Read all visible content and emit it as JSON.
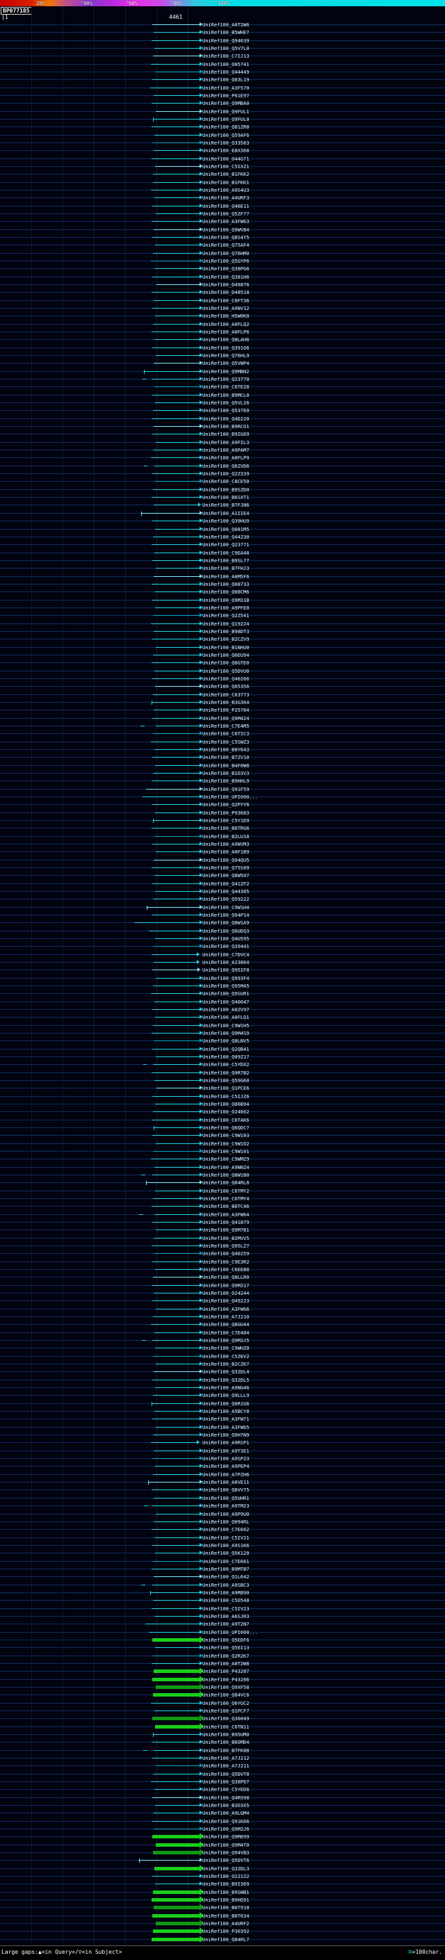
{
  "footer": {
    "left": "Large gaps:▲<in Query>/▽<in Subject>",
    "scale_symbol": "≡",
    "right": "=100char."
  },
  "chart_data": {
    "type": "bar",
    "orientation": "horizontal-alignment-spans",
    "title": "BP077185",
    "x_axis": {
      "min": 1,
      "max": 4461,
      "label_left": "|1",
      "label_right": "4461",
      "unit": "char"
    },
    "identity_scale": {
      "ticks": [
        "20%",
        "^40%",
        "^60%",
        "^80%",
        "^100%"
      ],
      "colors": [
        "#c40000",
        "#f07800",
        "#8836cc",
        "#ee2aee",
        "#00e2e8"
      ]
    },
    "label_prefix": "UniRef100_",
    "palette": {
      "cy": "#1fd8ea",
      "cb": "#7deeff",
      "cd": "#00a8c8",
      "gr": "#19cf19",
      "gd": "#0f9a12"
    },
    "rows": [
      {
        "l": "A0T2W6",
        "a": 219,
        "c": "cb"
      },
      {
        "l": "B5WHE7",
        "a": 221
      },
      {
        "l": "Q94639",
        "a": 218
      },
      {
        "l": "Q5V7L0",
        "a": 222
      },
      {
        "l": "C7IJ13",
        "a": 220,
        "c": "cb"
      },
      {
        "l": "O05741",
        "a": 217
      },
      {
        "l": "Q44449",
        "a": 223,
        "c": "cd"
      },
      {
        "l": "Q83L19",
        "a": 219
      },
      {
        "l": "A3F570",
        "a": 216
      },
      {
        "l": "P61E97",
        "a": 221
      },
      {
        "l": "Q9MBA0",
        "a": 218
      },
      {
        "l": "Q9FUL1",
        "a": 224,
        "c": "cb"
      },
      {
        "l": "Q9FUL0",
        "a": 220,
        "k": 1
      },
      {
        "l": "Q81ZR8",
        "a": 218
      },
      {
        "l": "Q59AF6",
        "a": 222
      },
      {
        "l": "Q33583",
        "a": 219,
        "c": "cd"
      },
      {
        "l": "E8X368",
        "a": 221
      },
      {
        "l": "O44G71",
        "a": 218
      },
      {
        "l": "C5IXZ1",
        "a": 223,
        "c": "cb"
      },
      {
        "l": "B1FKK2",
        "a": 220
      },
      {
        "l": "B1FKK1",
        "a": 220
      },
      {
        "l": "A9S4U3",
        "a": 217
      },
      {
        "l": "A4URF3",
        "a": 222
      },
      {
        "l": "Q46E11",
        "a": 219
      },
      {
        "l": "Q5ZF77",
        "a": 224
      },
      {
        "l": "A3FW63",
        "a": 218
      },
      {
        "l": "Q9WVB4",
        "a": 221,
        "c": "cb"
      },
      {
        "l": "Q8S4Y5",
        "a": 219
      },
      {
        "l": "Q75AF4",
        "a": 223
      },
      {
        "l": "Q76HM0",
        "a": 220
      },
      {
        "l": "Q5GYP6",
        "a": 217,
        "c": "cd"
      },
      {
        "l": "Q38PG6",
        "a": 222
      },
      {
        "l": "Q381H6",
        "a": 219
      },
      {
        "l": "D49876",
        "a": 225,
        "c": "cb"
      },
      {
        "l": "D48518",
        "a": 218
      },
      {
        "l": "C0FT36",
        "a": 221
      },
      {
        "l": "A9NV12",
        "a": 219
      },
      {
        "l": "H5W0K0",
        "a": 223
      },
      {
        "l": "A0FLQ2",
        "a": 220
      },
      {
        "l": "A0FLP6",
        "a": 218
      },
      {
        "l": "Q8LAH6",
        "a": 222
      },
      {
        "l": "Q391O6",
        "a": 219
      },
      {
        "l": "Q76HL9",
        "a": 224
      },
      {
        "l": "Q5VWP4",
        "a": 221,
        "c": "cb"
      },
      {
        "l": "Q9MBN2",
        "a": 207,
        "k": 1
      },
      {
        "l": "Q23770",
        "a": 218,
        "p": [
          205,
          211
        ]
      },
      {
        "l": "C6TEZ8",
        "a": 222,
        "c": "cd"
      },
      {
        "l": "B9MCL0",
        "a": 219
      },
      {
        "l": "Q5VLI6",
        "a": 223
      },
      {
        "l": "Q537E0",
        "a": 220
      },
      {
        "l": "Q4D220",
        "a": 218
      },
      {
        "l": "B9RCO1",
        "a": 221,
        "c": "cb"
      },
      {
        "l": "B9IG69",
        "a": 219
      },
      {
        "l": "A9FIL3",
        "a": 224
      },
      {
        "l": "A9PAM7",
        "a": 220
      },
      {
        "l": "A0FLP9",
        "a": 217
      },
      {
        "l": "Q6ZVD6",
        "a": 222,
        "p": [
          207,
          212
        ]
      },
      {
        "l": "Q2Z339",
        "a": 219
      },
      {
        "l": "C8CE50",
        "a": 223,
        "c": "cd"
      },
      {
        "l": "B9SZD0",
        "a": 220
      },
      {
        "l": "B6SXT1",
        "a": 218
      },
      {
        "l": "B7FJN6",
        "a": 221,
        "b": 285
      },
      {
        "l": "A1IIE4",
        "a": 203,
        "k": 1,
        "c": "cb"
      },
      {
        "l": "Q39HU9",
        "a": 219
      },
      {
        "l": "Q081M5",
        "a": 223
      },
      {
        "l": "Q44230",
        "a": 220
      },
      {
        "l": "Q23771",
        "a": 218
      },
      {
        "l": "C9EA48",
        "a": 222
      },
      {
        "l": "B9SL77",
        "a": 219
      },
      {
        "l": "B7FHJ3",
        "a": 224
      },
      {
        "l": "A0M5F6",
        "a": 221,
        "c": "cb"
      },
      {
        "l": "Q08733",
        "a": 218
      },
      {
        "l": "Q08CM6",
        "a": 222
      },
      {
        "l": "Q9M31B",
        "a": 219
      },
      {
        "l": "A9PFE8",
        "a": 223
      },
      {
        "l": "Q2Z541",
        "a": 220,
        "c": "cd"
      },
      {
        "l": "Q19224",
        "a": 217
      },
      {
        "l": "B98DT3",
        "a": 221
      },
      {
        "l": "B2CZV9",
        "a": 219
      },
      {
        "l": "B1NHU0",
        "a": 224
      },
      {
        "l": "Q6EU94",
        "a": 220
      },
      {
        "l": "Q8GTE0",
        "a": 218
      },
      {
        "l": "Q5DVU0",
        "a": 222
      },
      {
        "l": "Q40266",
        "a": 219
      },
      {
        "l": "Q65356",
        "a": 223,
        "c": "cb"
      },
      {
        "l": "C63773",
        "a": 220
      },
      {
        "l": "B3G364",
        "a": 218,
        "k": 1
      },
      {
        "l": "P25784",
        "a": 221
      },
      {
        "l": "Q9M424",
        "a": 219
      },
      {
        "l": "C7E4M5",
        "a": 224,
        "p": [
          202,
          208
        ]
      },
      {
        "l": "C6TIC3",
        "a": 220,
        "c": "cd"
      },
      {
        "l": "C5SWZ3",
        "a": 217
      },
      {
        "l": "B8Y643",
        "a": 222
      },
      {
        "l": "B7ZV10",
        "a": 219
      },
      {
        "l": "B4F0W8",
        "a": 223
      },
      {
        "l": "B1O3V3",
        "a": 220
      },
      {
        "l": "B9HHL9",
        "a": 218
      },
      {
        "l": "Q91F59",
        "a": 210,
        "c": "cb"
      },
      {
        "l": "UPI000...",
        "a": 205
      },
      {
        "l": "Q2PYY6",
        "a": 219
      },
      {
        "l": "P93683",
        "a": 223
      },
      {
        "l": "C5Y1D9",
        "a": 220,
        "k": 1
      },
      {
        "l": "B6TRG6",
        "a": 218
      },
      {
        "l": "B2LU18",
        "a": 222,
        "c": "cd"
      },
      {
        "l": "A9NVM3",
        "a": 219
      },
      {
        "l": "A0F1B9",
        "a": 224
      },
      {
        "l": "Q94QU5",
        "a": 221,
        "c": "cb"
      },
      {
        "l": "Q75S09",
        "a": 218
      },
      {
        "l": "Q8W507",
        "a": 222
      },
      {
        "l": "Q41ZF2",
        "a": 219
      },
      {
        "l": "Q44385",
        "a": 223
      },
      {
        "l": "Q59222",
        "a": 220
      },
      {
        "l": "C9W1H4",
        "a": 211,
        "k": 1,
        "c": "cb"
      },
      {
        "l": "Q94P14",
        "a": 218
      },
      {
        "l": "Q8W1A9",
        "a": 193
      },
      {
        "l": "Q6UDQ3",
        "a": 214
      },
      {
        "l": "Q4U595",
        "a": 223
      },
      {
        "l": "Q39441",
        "a": 220,
        "c": "cd"
      },
      {
        "l": "C7DVC4",
        "a": 218,
        "b": 283
      },
      {
        "l": "A23864",
        "a": 221,
        "b": 283
      },
      {
        "l": "Q95IF8",
        "a": 219,
        "b": 284,
        "c": "cb"
      },
      {
        "l": "Q993F4",
        "a": 224
      },
      {
        "l": "Q95M45",
        "a": 220
      },
      {
        "l": "Q9SUR1",
        "a": 217
      },
      {
        "l": "Q40047",
        "a": 222
      },
      {
        "l": "A0ZV97",
        "a": 219
      },
      {
        "l": "A0FLQ1",
        "a": 223
      },
      {
        "l": "C9W1H5",
        "a": 220
      },
      {
        "l": "Q9M4S9",
        "a": 218
      },
      {
        "l": "Q8LNV5",
        "a": 221,
        "c": "cd"
      },
      {
        "l": "Q2QB41",
        "a": 219
      },
      {
        "l": "Q09Z17",
        "a": 224
      },
      {
        "l": "C5YDX2",
        "a": 220,
        "p": [
          206,
          211
        ]
      },
      {
        "l": "Q9R7B2",
        "a": 218
      },
      {
        "l": "Q59G60",
        "a": 222
      },
      {
        "l": "Q1PCE6",
        "a": 225,
        "c": "cb"
      },
      {
        "l": "C5IJZ6",
        "a": 219
      },
      {
        "l": "Q06B94",
        "a": 223
      },
      {
        "l": "O24662",
        "a": 220
      },
      {
        "l": "C6TAK6",
        "a": 218
      },
      {
        "l": "Q6QDC7",
        "a": 221,
        "k": 1
      },
      {
        "l": "C9W103",
        "a": 219
      },
      {
        "l": "C9W1O2",
        "a": 224
      },
      {
        "l": "C9W101",
        "a": 220,
        "c": "cd"
      },
      {
        "l": "C9WMZ9",
        "a": 217
      },
      {
        "l": "A9NNZ4",
        "a": 222
      },
      {
        "l": "Q8W1B0",
        "a": 219,
        "p": [
          203,
          209
        ]
      },
      {
        "l": "Q84RL8",
        "a": 210,
        "k": 1,
        "c": "cb"
      },
      {
        "l": "C6TMY2",
        "a": 223
      },
      {
        "l": "C6TMY4",
        "a": 220
      },
      {
        "l": "B6TC46",
        "a": 218
      },
      {
        "l": "A3FW64",
        "a": 222,
        "p": [
          200,
          206
        ]
      },
      {
        "l": "Q41879",
        "a": 219
      },
      {
        "l": "Q9M7B1",
        "a": 224
      },
      {
        "l": "B2MVV5",
        "a": 221
      },
      {
        "l": "Q95LZ7",
        "a": 218
      },
      {
        "l": "Q40259",
        "a": 222,
        "c": "cd"
      },
      {
        "l": "C9E3R2",
        "a": 219
      },
      {
        "l": "C6EEB8",
        "a": 223
      },
      {
        "l": "Q8LLR0",
        "a": 220,
        "c": "cb"
      },
      {
        "l": "Q9M317",
        "a": 218
      },
      {
        "l": "O24244",
        "a": 221
      },
      {
        "l": "Q49223",
        "a": 219
      },
      {
        "l": "A3FW66",
        "a": 224
      },
      {
        "l": "A7J210",
        "a": 220
      },
      {
        "l": "Q8GU44",
        "a": 217
      },
      {
        "l": "C7E484",
        "a": 222
      },
      {
        "l": "Q9M3J5",
        "a": 219,
        "p": [
          204,
          210
        ]
      },
      {
        "l": "C9WHZ0",
        "a": 223
      },
      {
        "l": "C5Z6V2",
        "a": 220,
        "c": "cd"
      },
      {
        "l": "B2CZK7",
        "a": 224
      },
      {
        "l": "Q32DL4",
        "a": 221,
        "c": "cb"
      },
      {
        "l": "Q32DL5",
        "a": 219
      },
      {
        "l": "A9NG46",
        "a": 223
      },
      {
        "l": "Q9LLL9",
        "a": 220
      },
      {
        "l": "Q6R1G6",
        "a": 218,
        "k": 1
      },
      {
        "l": "A5BCY8",
        "a": 222
      },
      {
        "l": "A3FW71",
        "a": 219
      },
      {
        "l": "A3FW65",
        "a": 224
      },
      {
        "l": "Q9H7N9",
        "a": 220
      },
      {
        "l": "A9RSP1",
        "a": 217,
        "b": 283
      },
      {
        "l": "A9T3E1",
        "a": 221
      },
      {
        "l": "A9SP23",
        "a": 219,
        "c": "cd"
      },
      {
        "l": "A9PEP4",
        "a": 223
      },
      {
        "l": "A7PZH6",
        "a": 220
      },
      {
        "l": "A8VE11",
        "a": 213,
        "k": 1,
        "c": "cb"
      },
      {
        "l": "Q8VV75",
        "a": 218
      },
      {
        "l": "Q5UHR1",
        "a": 221
      },
      {
        "l": "A9TM23",
        "a": 219,
        "p": [
          207,
          213
        ]
      },
      {
        "l": "A9P9U0",
        "a": 224
      },
      {
        "l": "Q094RL",
        "a": 221
      },
      {
        "l": "C7E662",
        "a": 218
      },
      {
        "l": "C5IV21",
        "a": 222
      },
      {
        "l": "A9S1K6",
        "a": 219
      },
      {
        "l": "Q5K120",
        "a": 223
      },
      {
        "l": "C7E661",
        "a": 220,
        "c": "cd"
      },
      {
        "l": "B9MTB7",
        "a": 218
      },
      {
        "l": "Q1L642",
        "a": 221,
        "c": "cb"
      },
      {
        "l": "A9SBC3",
        "a": 219,
        "p": [
          203,
          209
        ]
      },
      {
        "l": "A9RB90",
        "a": 216,
        "k": 1
      },
      {
        "l": "C5O548",
        "a": 220
      },
      {
        "l": "C5IV23",
        "a": 218
      },
      {
        "l": "A6SJR3",
        "a": 222
      },
      {
        "l": "A9T2N7",
        "a": 209
      },
      {
        "l": "UPI000...",
        "a": 214
      },
      {
        "l": "Q5EDF6",
        "a": 219,
        "c": "gr",
        "t": 5
      },
      {
        "l": "Q56I13",
        "a": 223
      },
      {
        "l": "Q2R2K7",
        "a": 220,
        "c": "cd"
      },
      {
        "l": "A0T2W8",
        "a": 218
      },
      {
        "l": "P43287",
        "a": 221,
        "c": "gr",
        "t": 5
      },
      {
        "l": "P43286",
        "a": 219,
        "c": "gr",
        "t": 5
      },
      {
        "l": "Q9XF58",
        "a": 224,
        "c": "gd",
        "t": 5
      },
      {
        "l": "Q84VC6",
        "a": 220,
        "c": "gr",
        "t": 5
      },
      {
        "l": "Q6YUC2",
        "a": 217
      },
      {
        "l": "Q1PCF7",
        "a": 222
      },
      {
        "l": "Q36049",
        "a": 219,
        "c": "gd",
        "t": 5
      },
      {
        "l": "C6TN11",
        "a": 223,
        "c": "gr",
        "t": 5
      },
      {
        "l": "B95UM0",
        "a": 220,
        "k": 1
      },
      {
        "l": "B6OMD4",
        "a": 218
      },
      {
        "l": "B7FK88",
        "a": 221,
        "p": [
          206,
          212
        ]
      },
      {
        "l": "A7J212",
        "a": 219
      },
      {
        "l": "A7J211",
        "a": 224,
        "c": "cd"
      },
      {
        "l": "Q5DVT8",
        "a": 220
      },
      {
        "l": "Q38P67",
        "a": 217
      },
      {
        "l": "C5YED6",
        "a": 222
      },
      {
        "l": "Q4R998",
        "a": 219,
        "c": "cb"
      },
      {
        "l": "B3O3X5",
        "a": 223
      },
      {
        "l": "A9LGM4",
        "a": 220
      },
      {
        "l": "Q91K66",
        "a": 218
      },
      {
        "l": "Q9M3J6",
        "a": 221,
        "c": "cd"
      },
      {
        "l": "Q9M899",
        "a": 219,
        "c": "gr",
        "t": 5
      },
      {
        "l": "Q9M4T0",
        "a": 224,
        "c": "gr",
        "t": 5
      },
      {
        "l": "Q94VB3",
        "a": 220,
        "c": "gd",
        "t": 5
      },
      {
        "l": "Q5DVT6",
        "a": 200,
        "k": 1,
        "c": "cb"
      },
      {
        "l": "Q32DL3",
        "a": 222,
        "c": "gr",
        "t": 5
      },
      {
        "l": "O22122",
        "a": 219
      },
      {
        "l": "B9I369",
        "a": 223
      },
      {
        "l": "B9SWB1",
        "a": 220,
        "c": "gr",
        "t": 5
      },
      {
        "l": "B9HQ91",
        "a": 218,
        "c": "gr",
        "t": 5
      },
      {
        "l": "B6T918",
        "a": 221,
        "c": "gd",
        "t": 5
      },
      {
        "l": "B6T634",
        "a": 219,
        "c": "gr",
        "t": 5
      },
      {
        "l": "A4URF2",
        "a": 224,
        "c": "gd",
        "t": 5
      },
      {
        "l": "P30392",
        "a": 220,
        "c": "gr",
        "t": 5
      },
      {
        "l": "Q84RL7",
        "a": 218,
        "c": "gr",
        "t": 5
      }
    ]
  }
}
